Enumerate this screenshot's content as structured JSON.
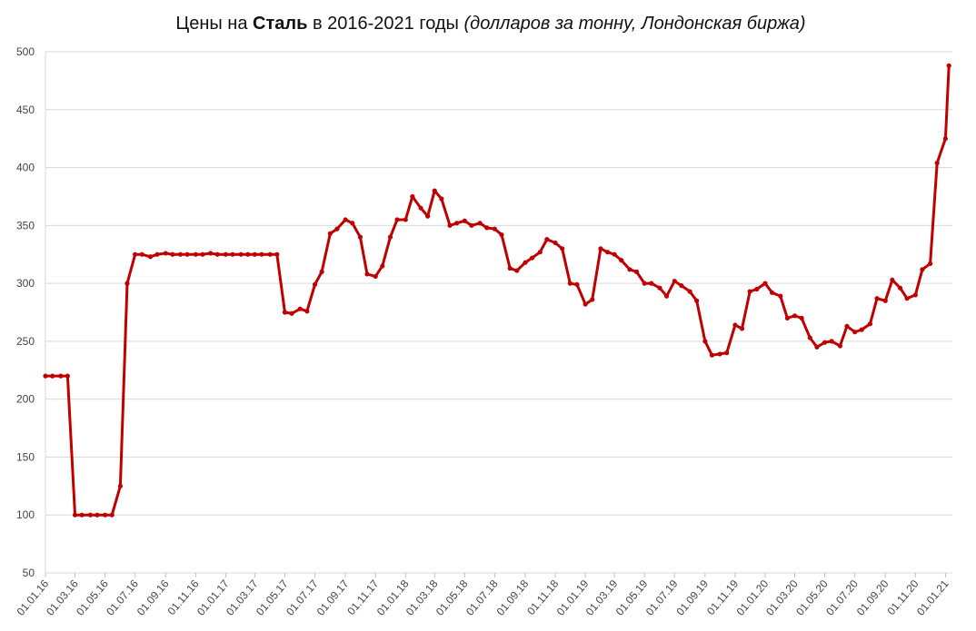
{
  "chart_data": {
    "type": "line",
    "title": [
      "Цены на ",
      "Сталь",
      " в 2016-2021 годы ",
      "(долларов за тонну, Лондонская биржа)"
    ],
    "x": [
      "2016-01-01",
      "2016-01-15",
      "2016-02-01",
      "2016-02-15",
      "2016-03-01",
      "2016-03-15",
      "2016-04-01",
      "2016-04-15",
      "2016-05-01",
      "2016-05-15",
      "2016-06-01",
      "2016-06-15",
      "2016-07-01",
      "2016-07-15",
      "2016-08-01",
      "2016-08-15",
      "2016-09-01",
      "2016-09-15",
      "2016-10-01",
      "2016-10-15",
      "2016-11-01",
      "2016-11-15",
      "2016-12-01",
      "2016-12-15",
      "2017-01-01",
      "2017-01-15",
      "2017-02-01",
      "2017-02-15",
      "2017-03-01",
      "2017-03-15",
      "2017-04-01",
      "2017-04-15",
      "2017-05-01",
      "2017-05-15",
      "2017-06-01",
      "2017-06-15",
      "2017-07-01",
      "2017-07-15",
      "2017-08-01",
      "2017-08-15",
      "2017-09-01",
      "2017-09-15",
      "2017-10-01",
      "2017-10-15",
      "2017-11-01",
      "2017-11-15",
      "2017-12-01",
      "2017-12-15",
      "2018-01-01",
      "2018-01-15",
      "2018-02-01",
      "2018-02-15",
      "2018-03-01",
      "2018-03-15",
      "2018-04-01",
      "2018-04-15",
      "2018-05-01",
      "2018-05-15",
      "2018-06-01",
      "2018-06-15",
      "2018-07-01",
      "2018-07-15",
      "2018-08-01",
      "2018-08-15",
      "2018-09-01",
      "2018-09-15",
      "2018-10-01",
      "2018-10-15",
      "2018-11-01",
      "2018-11-15",
      "2018-12-01",
      "2018-12-15",
      "2019-01-01",
      "2019-01-15",
      "2019-02-01",
      "2019-02-15",
      "2019-03-01",
      "2019-03-15",
      "2019-04-01",
      "2019-04-15",
      "2019-05-01",
      "2019-05-15",
      "2019-06-01",
      "2019-06-15",
      "2019-07-01",
      "2019-07-15",
      "2019-08-01",
      "2019-08-15",
      "2019-09-01",
      "2019-09-15",
      "2019-10-01",
      "2019-10-15",
      "2019-11-01",
      "2019-11-15",
      "2019-12-01",
      "2019-12-15",
      "2020-01-01",
      "2020-01-15",
      "2020-02-01",
      "2020-02-15",
      "2020-03-01",
      "2020-03-15",
      "2020-04-01",
      "2020-04-15",
      "2020-05-01",
      "2020-05-15",
      "2020-06-01",
      "2020-06-15",
      "2020-07-01",
      "2020-07-15",
      "2020-08-01",
      "2020-08-15",
      "2020-09-01",
      "2020-09-15",
      "2020-10-01",
      "2020-10-15",
      "2020-11-01",
      "2020-11-15",
      "2020-12-01",
      "2020-12-15",
      "2021-01-01",
      "2021-01-08"
    ],
    "series": [
      {
        "color": "#c00000",
        "values": [
          220,
          220,
          220,
          220,
          100,
          100,
          100,
          100,
          100,
          100,
          125,
          300,
          325,
          325,
          323,
          325,
          326,
          325,
          325,
          325,
          325,
          325,
          326,
          325,
          325,
          325,
          325,
          325,
          325,
          325,
          325,
          325,
          275,
          274,
          278,
          276,
          299,
          310,
          343,
          347,
          355,
          352,
          340,
          308,
          306,
          315,
          340,
          355,
          355,
          375,
          365,
          358,
          380,
          373,
          350,
          352,
          354,
          350,
          352,
          348,
          347,
          342,
          313,
          311,
          318,
          322,
          327,
          338,
          335,
          330,
          300,
          299,
          282,
          286,
          330,
          327,
          325,
          320,
          312,
          310,
          300,
          300,
          296,
          289,
          302,
          298,
          293,
          285,
          250,
          238,
          239,
          240,
          264,
          261,
          293,
          295,
          300,
          292,
          289,
          270,
          272,
          270,
          253,
          245,
          249,
          250,
          246,
          263,
          258,
          260,
          265,
          287,
          285,
          303,
          296,
          287,
          290,
          312,
          317,
          404,
          425,
          488
        ]
      }
    ],
    "ylim": [
      50,
      500
    ],
    "yticks": [
      50,
      100,
      150,
      200,
      250,
      300,
      350,
      400,
      450,
      500
    ],
    "xlim": [
      "2016-01-01",
      "2021-01-15"
    ],
    "xticks": [
      {
        "value": "2016-01-01",
        "label": "01.01.16"
      },
      {
        "value": "2016-03-01",
        "label": "01.03.16"
      },
      {
        "value": "2016-05-01",
        "label": "01.05.16"
      },
      {
        "value": "2016-07-01",
        "label": "01.07.16"
      },
      {
        "value": "2016-09-01",
        "label": "01.09.16"
      },
      {
        "value": "2016-11-01",
        "label": "01.11.16"
      },
      {
        "value": "2017-01-01",
        "label": "01.01.17"
      },
      {
        "value": "2017-03-01",
        "label": "01.03.17"
      },
      {
        "value": "2017-05-01",
        "label": "01.05.17"
      },
      {
        "value": "2017-07-01",
        "label": "01.07.17"
      },
      {
        "value": "2017-09-01",
        "label": "01.09.17"
      },
      {
        "value": "2017-11-01",
        "label": "01.11.17"
      },
      {
        "value": "2018-01-01",
        "label": "01.01.18"
      },
      {
        "value": "2018-03-01",
        "label": "01.03.18"
      },
      {
        "value": "2018-05-01",
        "label": "01.05.18"
      },
      {
        "value": "2018-07-01",
        "label": "01.07.18"
      },
      {
        "value": "2018-09-01",
        "label": "01.09.18"
      },
      {
        "value": "2018-11-01",
        "label": "01.11.18"
      },
      {
        "value": "2019-01-01",
        "label": "01.01.19"
      },
      {
        "value": "2019-03-01",
        "label": "01.03.19"
      },
      {
        "value": "2019-05-01",
        "label": "01.05.19"
      },
      {
        "value": "2019-07-01",
        "label": "01.07.19"
      },
      {
        "value": "2019-09-01",
        "label": "01.09.19"
      },
      {
        "value": "2019-11-01",
        "label": "01.11.19"
      },
      {
        "value": "2020-01-01",
        "label": "01.01.20"
      },
      {
        "value": "2020-03-01",
        "label": "01.03.20"
      },
      {
        "value": "2020-05-01",
        "label": "01.05.20"
      },
      {
        "value": "2020-07-01",
        "label": "01.07.20"
      },
      {
        "value": "2020-09-01",
        "label": "01.09.20"
      },
      {
        "value": "2020-11-01",
        "label": "01.11.20"
      },
      {
        "value": "2021-01-01",
        "label": "01.01.21"
      }
    ],
    "grid": true
  }
}
